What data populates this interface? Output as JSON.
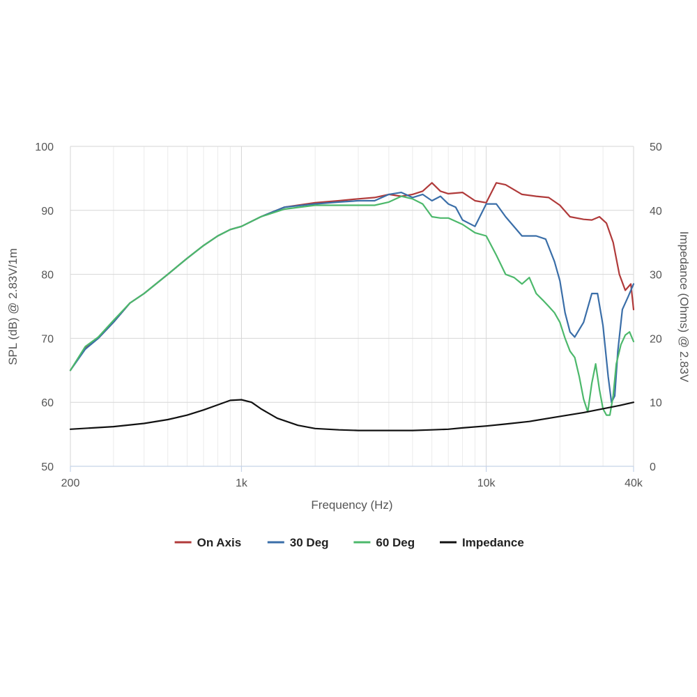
{
  "chart_data": {
    "type": "line",
    "xlabel": "Frequency (Hz)",
    "ylabel_left": "SPL (dB) @ 2.83V/1m",
    "ylabel_right": "Impedance (Ohms) @ 2.83V",
    "x_scale": "log",
    "xlim": [
      200,
      40000
    ],
    "ylim_left": [
      50,
      100
    ],
    "ylim_right": [
      0,
      50
    ],
    "x_ticks": [
      {
        "value": 200,
        "label": "200"
      },
      {
        "value": 1000,
        "label": "1k"
      },
      {
        "value": 10000,
        "label": "10k"
      },
      {
        "value": 40000,
        "label": "40k"
      }
    ],
    "y_ticks_left": [
      "50",
      "60",
      "70",
      "80",
      "90",
      "100"
    ],
    "y_ticks_right": [
      "0",
      "10",
      "20",
      "30",
      "40",
      "50"
    ],
    "grid": true,
    "legend_position": "bottom",
    "series": [
      {
        "name": "On Axis",
        "color": "#b03a3a",
        "axis": "left",
        "points": [
          [
            200,
            65
          ],
          [
            230,
            68.5
          ],
          [
            260,
            70
          ],
          [
            300,
            72.5
          ],
          [
            350,
            75.5
          ],
          [
            400,
            77
          ],
          [
            500,
            80
          ],
          [
            600,
            82.5
          ],
          [
            700,
            84.5
          ],
          [
            800,
            86
          ],
          [
            900,
            87
          ],
          [
            1000,
            87.5
          ],
          [
            1200,
            89
          ],
          [
            1500,
            90.5
          ],
          [
            2000,
            91.2
          ],
          [
            2500,
            91.5
          ],
          [
            3000,
            91.8
          ],
          [
            3500,
            92
          ],
          [
            4000,
            92.5
          ],
          [
            4500,
            92.2
          ],
          [
            5000,
            92.5
          ],
          [
            5500,
            93
          ],
          [
            6000,
            94.3
          ],
          [
            6500,
            93
          ],
          [
            7000,
            92.6
          ],
          [
            8000,
            92.8
          ],
          [
            9000,
            91.5
          ],
          [
            10000,
            91.2
          ],
          [
            11000,
            94.3
          ],
          [
            12000,
            94
          ],
          [
            14000,
            92.5
          ],
          [
            16000,
            92.2
          ],
          [
            18000,
            92
          ],
          [
            20000,
            90.8
          ],
          [
            22000,
            89
          ],
          [
            25000,
            88.6
          ],
          [
            27000,
            88.5
          ],
          [
            29000,
            89
          ],
          [
            31000,
            88
          ],
          [
            33000,
            85
          ],
          [
            35000,
            80
          ],
          [
            37000,
            77.5
          ],
          [
            39000,
            78.5
          ],
          [
            40000,
            74.5
          ]
        ]
      },
      {
        "name": "30 Deg",
        "color": "#3a6ea8",
        "axis": "left",
        "points": [
          [
            200,
            65
          ],
          [
            230,
            68.3
          ],
          [
            260,
            70
          ],
          [
            300,
            72.5
          ],
          [
            350,
            75.5
          ],
          [
            400,
            77
          ],
          [
            500,
            80
          ],
          [
            600,
            82.5
          ],
          [
            700,
            84.5
          ],
          [
            800,
            86
          ],
          [
            900,
            87
          ],
          [
            1000,
            87.5
          ],
          [
            1200,
            89
          ],
          [
            1500,
            90.5
          ],
          [
            2000,
            91
          ],
          [
            2500,
            91.3
          ],
          [
            3000,
            91.5
          ],
          [
            3500,
            91.5
          ],
          [
            4000,
            92.5
          ],
          [
            4500,
            92.8
          ],
          [
            5000,
            92
          ],
          [
            5500,
            92.5
          ],
          [
            6000,
            91.5
          ],
          [
            6500,
            92.2
          ],
          [
            7000,
            91
          ],
          [
            7500,
            90.5
          ],
          [
            8000,
            88.5
          ],
          [
            9000,
            87.5
          ],
          [
            10000,
            91
          ],
          [
            11000,
            91
          ],
          [
            12000,
            89
          ],
          [
            14000,
            86
          ],
          [
            16000,
            86
          ],
          [
            17500,
            85.5
          ],
          [
            19000,
            82
          ],
          [
            20000,
            79
          ],
          [
            21000,
            74
          ],
          [
            22000,
            71
          ],
          [
            23000,
            70.2
          ],
          [
            25000,
            72.5
          ],
          [
            27000,
            77
          ],
          [
            28500,
            77
          ],
          [
            30000,
            72
          ],
          [
            31500,
            64
          ],
          [
            32500,
            60
          ],
          [
            33500,
            61
          ],
          [
            34500,
            68
          ],
          [
            36000,
            74.5
          ],
          [
            38000,
            76.5
          ],
          [
            40000,
            78.5
          ]
        ]
      },
      {
        "name": "60 Deg",
        "color": "#4cb86b",
        "axis": "left",
        "points": [
          [
            200,
            65
          ],
          [
            230,
            68.7
          ],
          [
            260,
            70.2
          ],
          [
            300,
            72.8
          ],
          [
            350,
            75.5
          ],
          [
            400,
            77
          ],
          [
            500,
            80
          ],
          [
            600,
            82.5
          ],
          [
            700,
            84.5
          ],
          [
            800,
            86
          ],
          [
            900,
            87
          ],
          [
            1000,
            87.5
          ],
          [
            1200,
            89
          ],
          [
            1500,
            90.2
          ],
          [
            2000,
            90.8
          ],
          [
            2500,
            90.8
          ],
          [
            3000,
            90.8
          ],
          [
            3500,
            90.8
          ],
          [
            4000,
            91.3
          ],
          [
            4500,
            92.2
          ],
          [
            5000,
            91.8
          ],
          [
            5500,
            91
          ],
          [
            6000,
            89
          ],
          [
            6500,
            88.8
          ],
          [
            7000,
            88.8
          ],
          [
            8000,
            87.8
          ],
          [
            9000,
            86.5
          ],
          [
            10000,
            86
          ],
          [
            11000,
            83
          ],
          [
            12000,
            80
          ],
          [
            13000,
            79.5
          ],
          [
            14000,
            78.5
          ],
          [
            15000,
            79.5
          ],
          [
            16000,
            77
          ],
          [
            17000,
            76
          ],
          [
            18000,
            75
          ],
          [
            19000,
            74
          ],
          [
            20000,
            72.5
          ],
          [
            21000,
            70
          ],
          [
            22000,
            68
          ],
          [
            23000,
            67
          ],
          [
            24000,
            64
          ],
          [
            25000,
            60.5
          ],
          [
            26000,
            58.5
          ],
          [
            27000,
            63
          ],
          [
            28000,
            66
          ],
          [
            29000,
            62
          ],
          [
            30000,
            59
          ],
          [
            31000,
            58
          ],
          [
            32000,
            58
          ],
          [
            33000,
            61
          ],
          [
            34000,
            66
          ],
          [
            35500,
            69
          ],
          [
            37000,
            70.5
          ],
          [
            38500,
            71
          ],
          [
            40000,
            69.5
          ]
        ]
      },
      {
        "name": "Impedance",
        "color": "#111111",
        "axis": "right",
        "points": [
          [
            200,
            5.8
          ],
          [
            300,
            6.2
          ],
          [
            400,
            6.7
          ],
          [
            500,
            7.3
          ],
          [
            600,
            8
          ],
          [
            700,
            8.8
          ],
          [
            800,
            9.6
          ],
          [
            900,
            10.3
          ],
          [
            1000,
            10.4
          ],
          [
            1100,
            10
          ],
          [
            1200,
            9
          ],
          [
            1400,
            7.5
          ],
          [
            1700,
            6.4
          ],
          [
            2000,
            5.9
          ],
          [
            2500,
            5.7
          ],
          [
            3000,
            5.6
          ],
          [
            3500,
            5.6
          ],
          [
            4000,
            5.6
          ],
          [
            5000,
            5.6
          ],
          [
            6000,
            5.7
          ],
          [
            7000,
            5.8
          ],
          [
            8000,
            6
          ],
          [
            10000,
            6.3
          ],
          [
            12000,
            6.6
          ],
          [
            15000,
            7
          ],
          [
            20000,
            7.8
          ],
          [
            25000,
            8.4
          ],
          [
            30000,
            9
          ],
          [
            35000,
            9.5
          ],
          [
            40000,
            10
          ]
        ]
      }
    ]
  }
}
